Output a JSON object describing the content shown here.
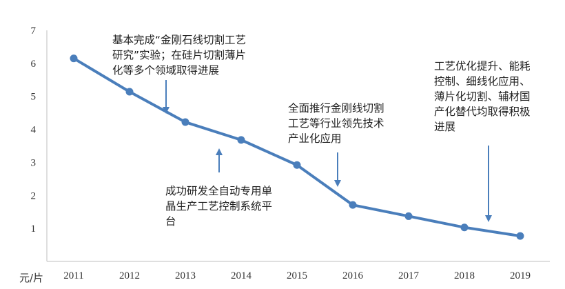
{
  "chart_data": {
    "type": "line",
    "title": "",
    "ylabel": "元/片",
    "xlabel": "",
    "categories": [
      "2011",
      "2012",
      "2013",
      "2014",
      "2015",
      "2016",
      "2017",
      "2018",
      "2019"
    ],
    "series": [
      {
        "values": [
          6.15,
          5.14,
          4.22,
          3.68,
          2.92,
          1.71,
          1.37,
          1.03,
          0.77
        ]
      }
    ],
    "ylim": [
      0,
      7
    ],
    "yticks": [
      1,
      2,
      3,
      4,
      5,
      6,
      7
    ],
    "grid": false,
    "legend": "none",
    "line_color": "#4a7ebb",
    "annotations": [
      {
        "lines": [
          "基本完成“金刚石线切割工艺",
          "研究”实验；在硅片切割薄片",
          "化等多个领域取得进展"
        ],
        "arrow": "down",
        "near": "2012-2013"
      },
      {
        "lines": [
          "成功研发全自动专用单",
          "晶生产工艺控制系统平",
          "台"
        ],
        "arrow": "up",
        "near": "2013-2014"
      },
      {
        "lines": [
          "全面推行金刚线切割",
          "工艺等行业领先技术",
          "产业化应用"
        ],
        "arrow": "down",
        "near": "2015-2016"
      },
      {
        "lines": [
          "工艺优化提升、能耗",
          "控制、细线化应用、",
          "薄片化切割、辅材国",
          "产化替代均取得积极",
          "进展"
        ],
        "arrow": "down",
        "near": "2018-2019"
      }
    ]
  }
}
